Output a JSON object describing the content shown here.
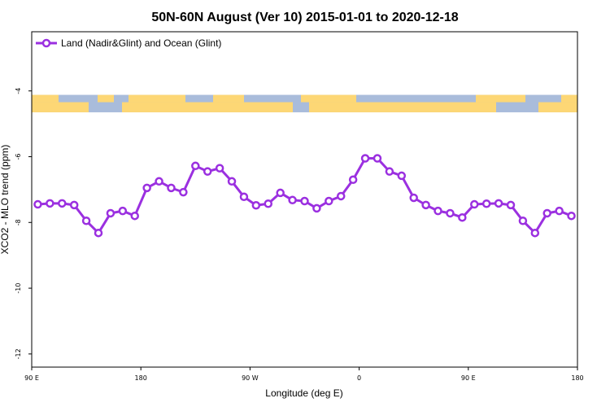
{
  "chart_data": {
    "type": "line",
    "title": "50N-60N August (Ver 10)   2015-01-01 to 2020-12-18",
    "xlabel": "Longitude (deg E)",
    "ylabel": "XCO2 - MLO trend (ppm)",
    "xlim": [
      90,
      540
    ],
    "ylim": [
      -12.4,
      -2.2
    ],
    "x_ticks": [
      {
        "value": 90,
        "label": "90 E"
      },
      {
        "value": 180,
        "label": "180"
      },
      {
        "value": 270,
        "label": "90 W"
      },
      {
        "value": 360,
        "label": "0"
      },
      {
        "value": 450,
        "label": "90 E"
      },
      {
        "value": 540,
        "label": "180"
      }
    ],
    "y_ticks": [
      {
        "value": -4,
        "label": "-4"
      },
      {
        "value": -6,
        "label": "-6"
      },
      {
        "value": -8,
        "label": "-8"
      },
      {
        "value": -10,
        "label": "-10"
      },
      {
        "value": -12,
        "label": "-12"
      }
    ],
    "legend": {
      "position": "top-left"
    },
    "map_strip": {
      "ymin": -4.65,
      "ymax": -4.12,
      "ocean_color": "#a9bcdb",
      "land_color": "#fdd775"
    },
    "series": [
      {
        "name": "Land (Nadir&Glint) and Ocean (Glint)",
        "color": "#9b30e0",
        "x": [
          95,
          105,
          115,
          125,
          135,
          145,
          155,
          165,
          175,
          185,
          195,
          205,
          215,
          225,
          235,
          245,
          255,
          265,
          275,
          285,
          295,
          305,
          315,
          325,
          335,
          345,
          355,
          365,
          375,
          385,
          395,
          405,
          415,
          425,
          435,
          445,
          455,
          465,
          475,
          485,
          495,
          505,
          515,
          525,
          535
        ],
        "y": [
          -7.45,
          -7.42,
          -7.42,
          -7.47,
          -7.95,
          -8.32,
          -7.72,
          -7.65,
          -7.8,
          -6.95,
          -6.75,
          -6.95,
          -7.08,
          -6.28,
          -6.45,
          -6.35,
          -6.75,
          -7.22,
          -7.48,
          -7.43,
          -7.1,
          -7.32,
          -7.35,
          -7.57,
          -7.35,
          -7.2,
          -6.7,
          -6.05,
          -6.05,
          -6.45,
          -6.58,
          -7.25,
          -7.47,
          -7.65,
          -7.72,
          -7.85,
          -7.45,
          -7.43,
          -7.42,
          -7.47,
          -7.95,
          -8.32,
          -7.72,
          -7.65,
          -7.8
        ]
      }
    ]
  }
}
